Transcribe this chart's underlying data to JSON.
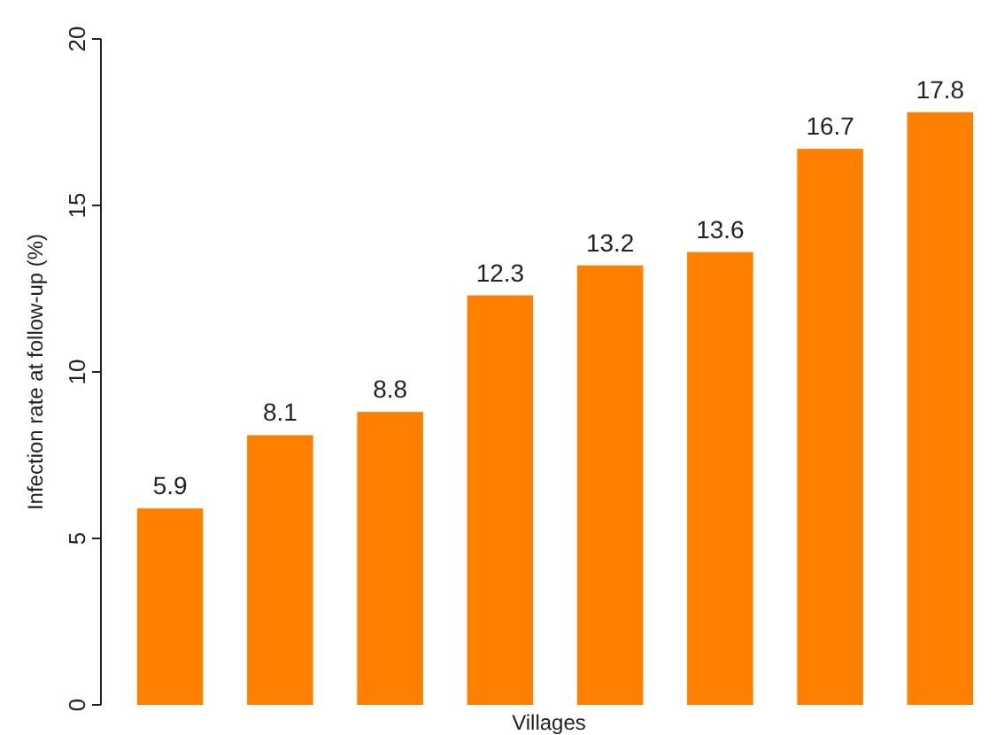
{
  "chart_data": {
    "type": "bar",
    "xlabel": "Villages",
    "ylabel": "Infection rate at follow-up (%)",
    "categories": [
      null,
      null,
      null,
      null,
      null,
      null,
      null,
      null
    ],
    "values": [
      5.9,
      8.1,
      8.8,
      12.3,
      13.2,
      13.6,
      16.7,
      17.8
    ],
    "color": "#ff8000",
    "ylim": [
      0,
      20
    ],
    "yticks": [
      0,
      5,
      10,
      15,
      20
    ],
    "grid": false,
    "data_labels": true
  }
}
